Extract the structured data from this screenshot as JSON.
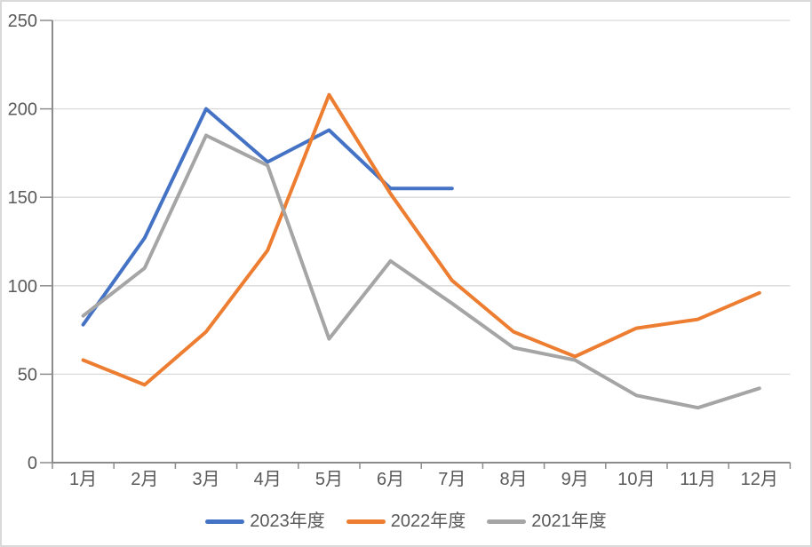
{
  "chart_data": {
    "type": "line",
    "title": "",
    "categories": [
      "1月",
      "2月",
      "3月",
      "4月",
      "5月",
      "6月",
      "7月",
      "8月",
      "9月",
      "10月",
      "11月",
      "12月"
    ],
    "series": [
      {
        "name": "2023年度",
        "color": "#4472C4",
        "values": [
          78,
          127,
          200,
          170,
          188,
          155,
          155
        ]
      },
      {
        "name": "2022年度",
        "color": "#ED7D31",
        "values": [
          58,
          44,
          74,
          120,
          208,
          152,
          103,
          74,
          60,
          76,
          81,
          96
        ]
      },
      {
        "name": "2021年度",
        "color": "#A5A5A5",
        "values": [
          83,
          110,
          185,
          168,
          70,
          114,
          90,
          65,
          58,
          38,
          31,
          42
        ]
      }
    ],
    "ylim": [
      0,
      250
    ],
    "yticks": [
      "0",
      "50",
      "100",
      "150",
      "200",
      "250"
    ],
    "grid": true,
    "legend_position": "bottom"
  },
  "colors": {
    "background": "#FFFFFF",
    "gridline": "#D9D9D9",
    "axis": "#8C8C8C",
    "tick_label": "#595959",
    "border": "#D9D9D9"
  }
}
